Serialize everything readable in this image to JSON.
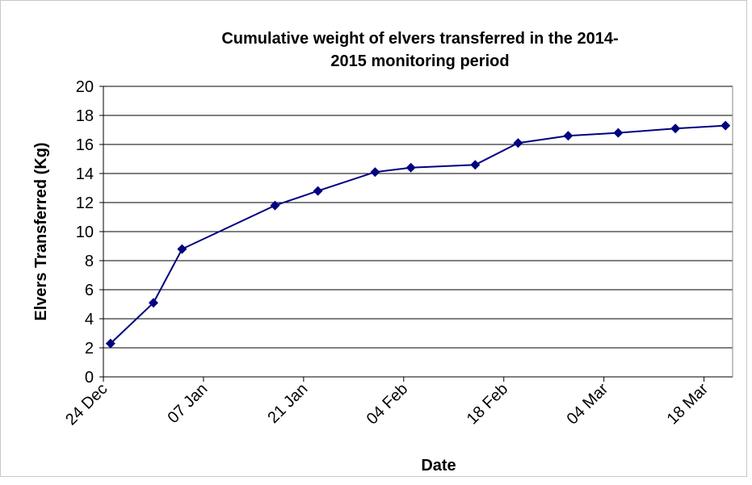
{
  "chart_data": {
    "type": "line",
    "title": "Cumulative weight of elvers transferred in the 2014-2015 monitoring period",
    "xlabel": "Date",
    "ylabel": "Elvers Transferred (Kg)",
    "x": [
      1,
      7,
      11,
      24,
      30,
      38,
      43,
      52,
      58,
      65,
      72,
      80,
      87
    ],
    "series": [
      {
        "name": "Elvers transferred",
        "color": "#000080",
        "values": [
          2.3,
          5.1,
          8.8,
          11.8,
          12.8,
          14.1,
          14.4,
          14.6,
          16.1,
          16.6,
          16.8,
          17.1,
          17.3
        ]
      }
    ],
    "xlim": [
      0,
      88
    ],
    "xticks": [
      {
        "value": 0,
        "label": "24 Dec"
      },
      {
        "value": 14,
        "label": "07 Jan"
      },
      {
        "value": 28,
        "label": "21 Jan"
      },
      {
        "value": 42,
        "label": "04 Feb"
      },
      {
        "value": 56,
        "label": "18 Feb"
      },
      {
        "value": 70,
        "label": "04 Mar"
      },
      {
        "value": 84,
        "label": "18 Mar"
      }
    ],
    "ylim": [
      0,
      20
    ],
    "yticks": [
      0,
      2,
      4,
      6,
      8,
      10,
      12,
      14,
      16,
      18,
      20
    ],
    "grid": true
  }
}
